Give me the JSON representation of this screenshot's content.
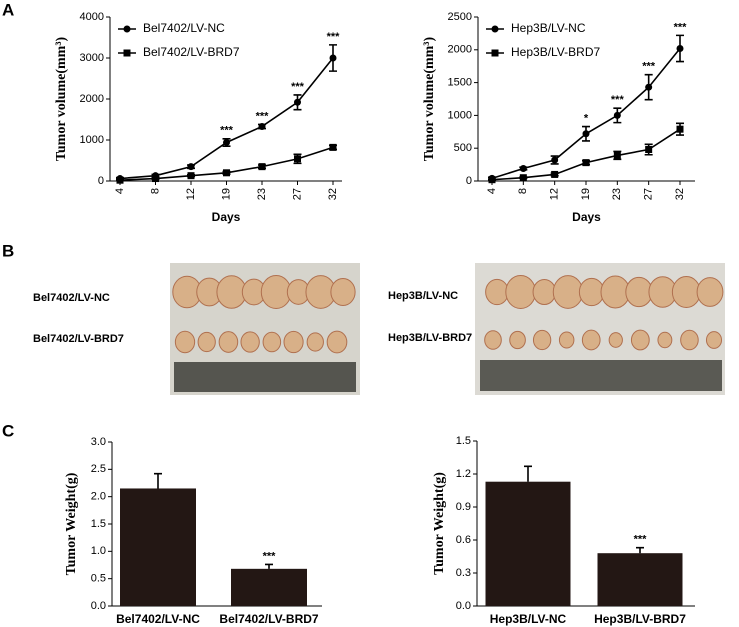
{
  "panels": [
    "A",
    "B",
    "C"
  ],
  "photos": [
    {
      "labels": [
        "Bel7402/LV-NC",
        "Bel7402/LV-BRD7"
      ]
    },
    {
      "labels": [
        "Hep3B/LV-NC",
        "Hep3B/LV-BRD7"
      ]
    }
  ],
  "chart_data": [
    {
      "type": "line",
      "ylabel": "Tumor volume(mm³)",
      "xlabel": "Days",
      "categories": [
        "4",
        "8",
        "12",
        "19",
        "23",
        "27",
        "32"
      ],
      "series": [
        {
          "name": "Bel7402/LV-NC",
          "color": "#000000",
          "marker": "circle",
          "values": [
            60,
            130,
            350,
            940,
            1330,
            1920,
            3000
          ],
          "errors": [
            20,
            30,
            40,
            90,
            50,
            180,
            320
          ]
        },
        {
          "name": "Bel7402/LV-BRD7",
          "color": "#000000",
          "marker": "square",
          "values": [
            20,
            60,
            130,
            200,
            350,
            540,
            820
          ],
          "errors": [
            10,
            15,
            20,
            30,
            40,
            110,
            50
          ]
        }
      ],
      "annotations": [
        {
          "category": "19",
          "text": "***"
        },
        {
          "category": "23",
          "text": "***"
        },
        {
          "category": "27",
          "text": "***"
        },
        {
          "category": "32",
          "text": "***"
        }
      ],
      "ylim": [
        0,
        4000
      ],
      "yticks": [
        0,
        1000,
        2000,
        3000,
        4000
      ],
      "legend": "upper left"
    },
    {
      "type": "line",
      "ylabel": "Tumor volume(mm³)",
      "xlabel": "Days",
      "categories": [
        "4",
        "8",
        "12",
        "19",
        "23",
        "27",
        "32"
      ],
      "series": [
        {
          "name": "Hep3B/LV-NC",
          "color": "#000000",
          "marker": "circle",
          "values": [
            40,
            190,
            320,
            720,
            1000,
            1430,
            2020
          ],
          "errors": [
            15,
            20,
            60,
            110,
            110,
            190,
            200
          ]
        },
        {
          "name": "Hep3B/LV-BRD7",
          "color": "#000000",
          "marker": "square",
          "values": [
            20,
            50,
            100,
            280,
            390,
            480,
            790
          ],
          "errors": [
            5,
            10,
            20,
            30,
            60,
            80,
            90
          ]
        }
      ],
      "annotations": [
        {
          "category": "19",
          "text": "*"
        },
        {
          "category": "23",
          "text": "***"
        },
        {
          "category": "27",
          "text": "***"
        },
        {
          "category": "32",
          "text": "***"
        }
      ],
      "ylim": [
        0,
        2500
      ],
      "yticks": [
        0,
        500,
        1000,
        1500,
        2000,
        2500
      ],
      "legend": "upper left"
    },
    {
      "type": "bar",
      "ylabel": "Tumor Weight(g)",
      "color": "#231714",
      "categories": [
        "Bel7402/LV-NC",
        "Bel7402/LV-BRD7"
      ],
      "values": [
        2.15,
        0.68
      ],
      "errors": [
        0.27,
        0.08
      ],
      "annotations": [
        {
          "category": "Bel7402/LV-BRD7",
          "text": "***"
        }
      ],
      "ylim": [
        0,
        3.0
      ],
      "yticks": [
        {
          "value": 0,
          "label": "0.0"
        },
        0.5,
        {
          "value": 1,
          "label": "1.0"
        },
        1.5,
        {
          "value": 2,
          "label": "2.0"
        },
        2.5,
        {
          "value": 3,
          "label": "3.0"
        }
      ]
    },
    {
      "type": "bar",
      "ylabel": "Tumor Weight(g)",
      "color": "#231714",
      "categories": [
        "Hep3B/LV-NC",
        "Hep3B/LV-BRD7"
      ],
      "values": [
        1.13,
        0.48
      ],
      "errors": [
        0.14,
        0.05
      ],
      "annotations": [
        {
          "category": "Hep3B/LV-BRD7",
          "text": "***"
        }
      ],
      "ylim": [
        0,
        1.5
      ],
      "yticks": [
        {
          "value": 0,
          "label": "0.0"
        },
        0.3,
        0.6,
        0.9,
        1.2,
        1.5
      ]
    }
  ]
}
